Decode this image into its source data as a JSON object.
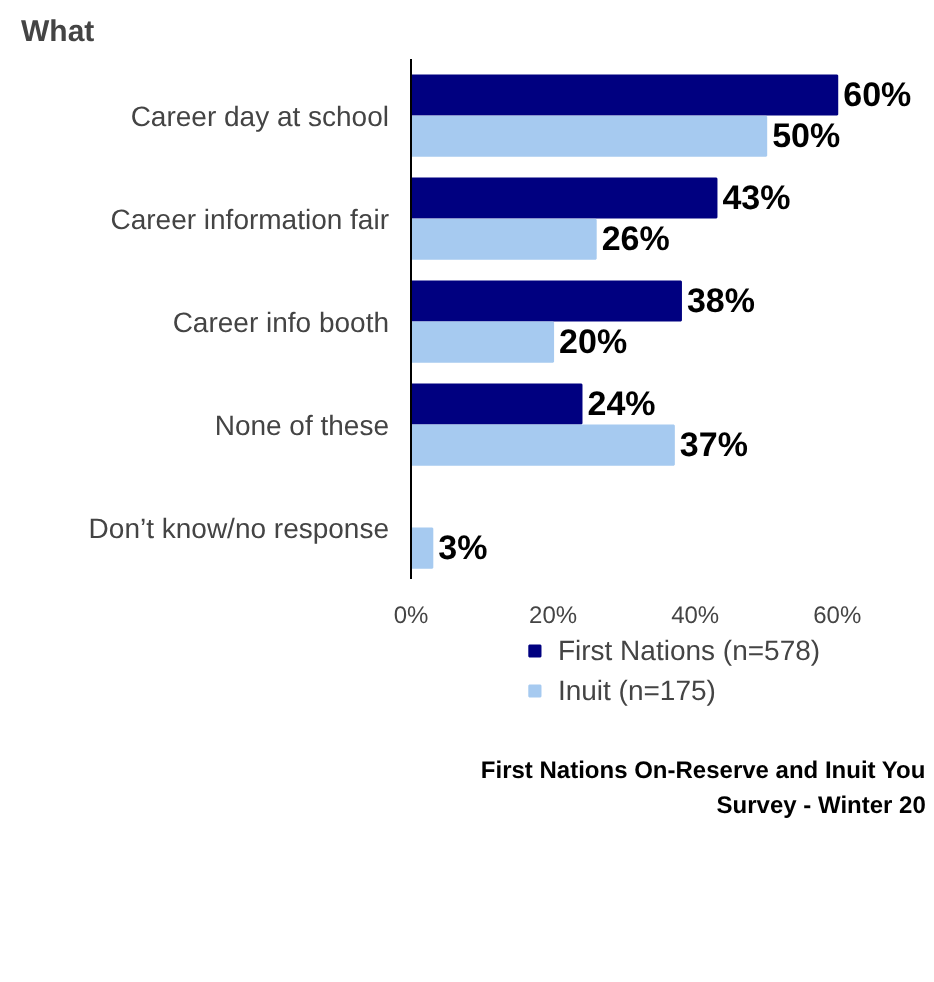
{
  "chart_data": {
    "type": "bar",
    "orientation": "horizontal",
    "title": "What",
    "categories": [
      "Career day at school",
      "Career information fair",
      "Career info booth",
      "None of these",
      "Don’t know/no response"
    ],
    "series": [
      {
        "name": "First Nations (n=578)",
        "color": "#000080",
        "values": [
          60,
          43,
          38,
          24,
          null
        ],
        "value_labels": [
          "60%",
          "43%",
          "38%",
          "24%",
          null
        ]
      },
      {
        "name": "Inuit (n=175)",
        "color": "#a6caf0",
        "values": [
          50,
          26,
          20,
          37,
          3
        ],
        "value_labels": [
          "50%",
          "26%",
          "20%",
          "37%",
          "3%"
        ]
      }
    ],
    "xlim": [
      0,
      60
    ],
    "xticks": [
      {
        "value": 0,
        "label": "0%"
      },
      {
        "value": 20,
        "label": "20%"
      },
      {
        "value": 40,
        "label": "40%"
      },
      {
        "value": 60,
        "label": "60%"
      }
    ],
    "grid": false,
    "legend": "bottom",
    "annotations": [
      "First Nations On-Reserve and Inuit You",
      "Survey - Winter 20"
    ]
  }
}
